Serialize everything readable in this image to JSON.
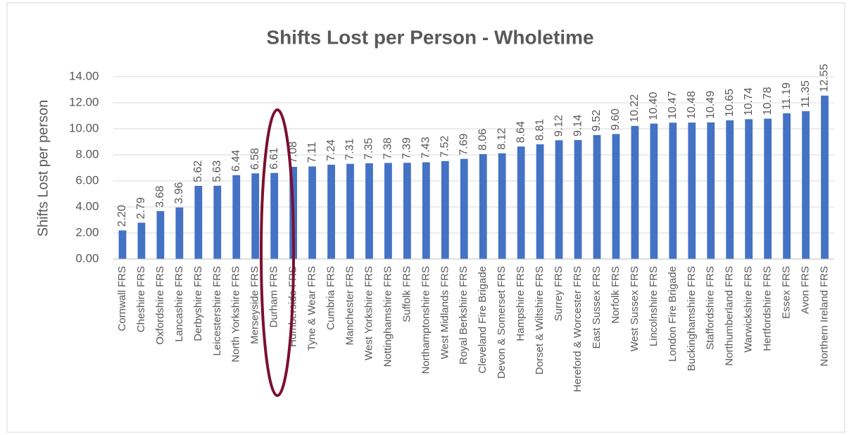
{
  "chart_data": {
    "type": "bar",
    "title": "Shifts Lost per Person - Wholetime",
    "y_label": "Shifts Lost per person",
    "categories": [
      "Cornwall FRS",
      "Cheshire FRS",
      "Oxfordshire FRS",
      "Lancashire FRS",
      "Derbyshire FRS",
      "Leicestershire FRS",
      "North Yorkshire FRS",
      "Merseyside FRS",
      "Durham FRS",
      "Humberside FRS",
      "Tyne & Wear FRS",
      "Cumbria FRS",
      "Manchester FRS",
      "West Yorkshire FRS",
      "Nottinghamshire FRS",
      "Suffolk FRS",
      "Northamptonshire FRS",
      "West Midlands FRS",
      "Royal Berkshire FRS",
      "Cleveland Fire Brigade",
      "Devon & Somerset FRS",
      "Hampshire FRS",
      "Dorset & Wiltshire FRS",
      "Surrey FRS",
      "Hereford & Worcester FRS",
      "East Sussex FRS",
      "Norfolk FRS",
      "West Sussex FRS",
      "Lincolnshire FRS",
      "London Fire Brigade",
      "Buckinghamshire FRS",
      "Staffordshire FRS",
      "Northumberland FRS",
      "Warwickshire FRS",
      "Hertfordshire FRS",
      "Essex FRS",
      "Avon FRS",
      "Northern Ireland FRS"
    ],
    "values": [
      2.2,
      2.79,
      3.68,
      3.96,
      5.62,
      5.63,
      6.44,
      6.58,
      6.61,
      7.08,
      7.11,
      7.24,
      7.31,
      7.35,
      7.38,
      7.39,
      7.43,
      7.52,
      7.69,
      8.06,
      8.12,
      8.64,
      8.81,
      9.12,
      9.14,
      9.52,
      9.6,
      10.22,
      10.4,
      10.47,
      10.48,
      10.49,
      10.65,
      10.74,
      10.78,
      11.19,
      11.35,
      12.55
    ],
    "value_labels": [
      "2.20",
      "2.79",
      "3.68",
      "3.96",
      "5.62",
      "5.63",
      "6.44",
      "6.58",
      "6.61",
      "7.08",
      "7.11",
      "7.24",
      "7.31",
      "7.35",
      "7.38",
      "7.39",
      "7.43",
      "7.52",
      "7.69",
      "8.06",
      "8.12",
      "8.64",
      "8.81",
      "9.12",
      "9.14",
      "9.52",
      "9.60",
      "10.22",
      "10.40",
      "10.47",
      "10.48",
      "10.49",
      "10.65",
      "10.74",
      "10.78",
      "11.19",
      "11.35",
      "12.55"
    ],
    "color": "#4472c4",
    "ylim": [
      0,
      14
    ],
    "yticks": [
      {
        "value": 0,
        "label": "0.00"
      },
      {
        "value": 2,
        "label": "2.00"
      },
      {
        "value": 4,
        "label": "4.00"
      },
      {
        "value": 6,
        "label": "6.00"
      },
      {
        "value": 8,
        "label": "8.00"
      },
      {
        "value": 10,
        "label": "10.00"
      },
      {
        "value": 12,
        "label": "12.00"
      },
      {
        "value": 14,
        "label": "14.00"
      }
    ],
    "grid": true
  }
}
